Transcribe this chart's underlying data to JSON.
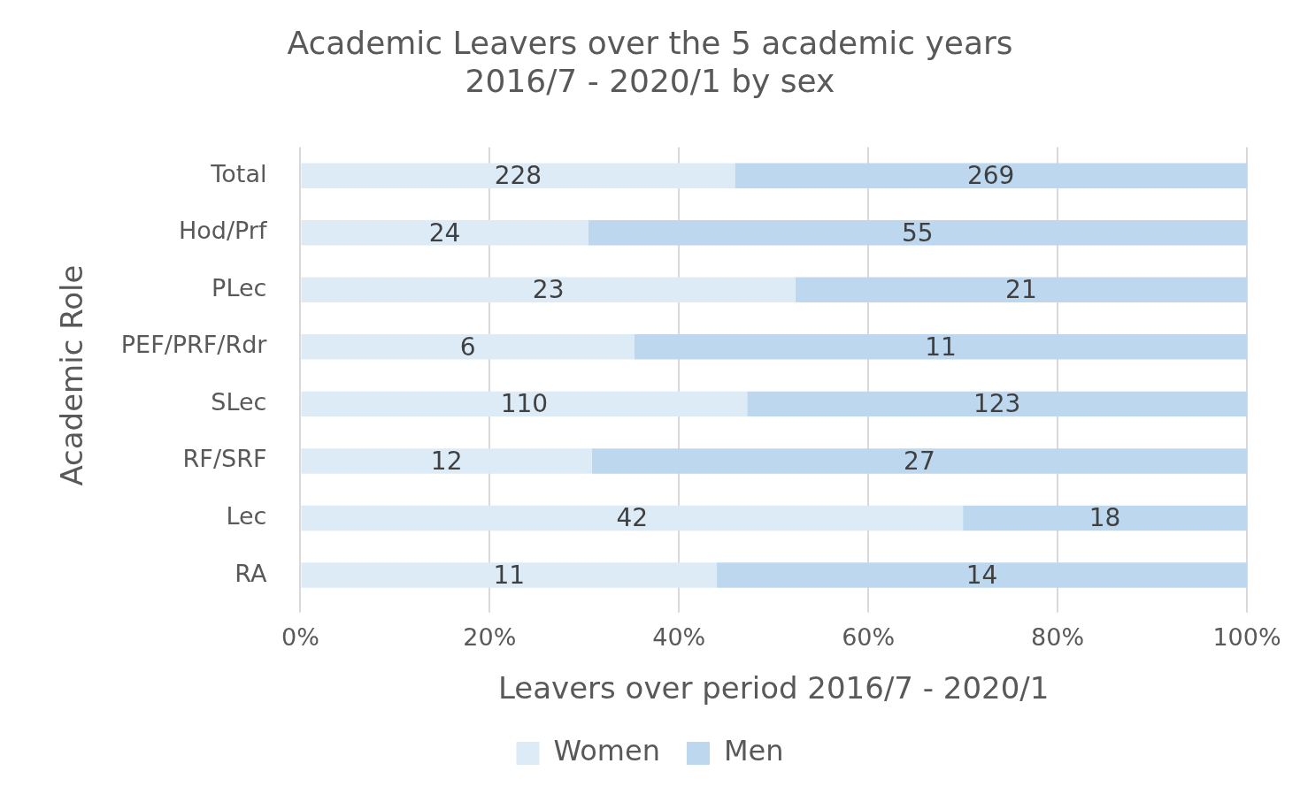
{
  "chart_data": {
    "type": "bar",
    "orientation": "horizontal",
    "stacked": true,
    "title": "Academic Leavers over the 5 academic years\n2016/7 - 2020/1 by sex",
    "xlabel": "Leavers over period 2016/7 - 2020/1",
    "ylabel": "Academic Role",
    "categories": [
      "Total",
      "Hod/Prf",
      "PLec",
      "PEF/PRF/Rdr",
      "SLec",
      "RF/SRF",
      "Lec",
      "RA"
    ],
    "series": [
      {
        "name": "Women",
        "color": "#ddebf7",
        "values": [
          45.9,
          30.4,
          52.3,
          35.3,
          47.2,
          30.8,
          70.0,
          44.0
        ]
      },
      {
        "name": "Men",
        "color": "#bdd7ee",
        "values": [
          54.1,
          69.6,
          47.7,
          64.7,
          52.8,
          69.2,
          30.0,
          56.0
        ]
      }
    ],
    "annotations": [
      "228",
      "269",
      "24",
      "55",
      "23",
      "21",
      "6",
      "11",
      "110",
      "123",
      "12",
      "27",
      "42",
      "18",
      "11",
      "14"
    ],
    "xlim": [
      0,
      100
    ],
    "xticks": [
      {
        "value": 0,
        "label": "0%"
      },
      {
        "value": 20,
        "label": "20%"
      },
      {
        "value": 40,
        "label": "40%"
      },
      {
        "value": 60,
        "label": "60%"
      },
      {
        "value": 80,
        "label": "80%"
      },
      {
        "value": 100,
        "label": "100%"
      }
    ],
    "grid": "x",
    "legend": "bottom"
  }
}
